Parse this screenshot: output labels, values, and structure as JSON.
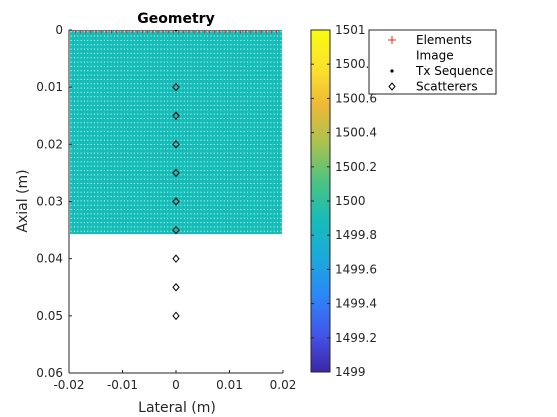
{
  "colors": {
    "field": "#15bdb8",
    "element_marker": "#e8262a",
    "grid_dots": "#e7f6f5",
    "sequence_dot": "#000000",
    "scatterer": "#000000",
    "axis": "#262626"
  },
  "chart_data": {
    "type": "scatter",
    "title": "Geometry",
    "xlabel": "Lateral (m)",
    "ylabel": "Axial (m)",
    "xlim": [
      -0.02,
      0.02
    ],
    "ylim": [
      0,
      0.06
    ],
    "y_reversed": true,
    "x_ticks": [
      -0.02,
      -0.01,
      0,
      0.01,
      0.02
    ],
    "x_tick_labels": [
      "-0.02",
      "-0.01",
      "0",
      "0.01",
      "0.02"
    ],
    "y_ticks": [
      0,
      0.01,
      0.02,
      0.03,
      0.04,
      0.05,
      0.06
    ],
    "y_tick_labels": [
      "0",
      "0.01",
      "0.02",
      "0.03",
      "0.04",
      "0.05",
      "0.06"
    ],
    "field": {
      "value": 1500,
      "x_range": [
        -0.0198,
        0.0198
      ],
      "y_range": [
        -0.0012,
        0.0357
      ]
    },
    "image_grid": {
      "x_range": [
        -0.0196,
        0.0196
      ],
      "y_range": [
        0.0003,
        0.0352
      ],
      "nx": 64,
      "ny": 47
    },
    "series": [
      {
        "name": "Elements",
        "marker": "+",
        "color": "#e8262a",
        "x_start": -0.0188,
        "x_end": 0.0188,
        "count": 40,
        "y": 0
      },
      {
        "name": "Image",
        "marker": "none"
      },
      {
        "name": "Tx Sequence",
        "marker": "dot",
        "color": "#000000",
        "x": [
          0
        ],
        "y": [
          0
        ]
      },
      {
        "name": "Scatterers",
        "marker": "diamond",
        "color": "#000000",
        "x": [
          0,
          0,
          0,
          0,
          0,
          0,
          0,
          0,
          0
        ],
        "y": [
          0.01,
          0.015,
          0.02,
          0.025,
          0.03,
          0.035,
          0.04,
          0.045,
          0.05
        ]
      }
    ],
    "legend": {
      "placement": "outside-top-right",
      "entries": [
        "Elements",
        "Image",
        "Tx Sequence",
        "Scatterers"
      ]
    },
    "colorbar": {
      "limits": [
        1499,
        1501
      ],
      "ticks": [
        1499,
        1499.2,
        1499.4,
        1499.6,
        1499.8,
        1500,
        1500.2,
        1500.4,
        1500.6,
        1500.8,
        1501
      ],
      "tick_labels": [
        "1499",
        "1499.2",
        "1499.4",
        "1499.6",
        "1499.8",
        "1500",
        "1500.2",
        "1500.4",
        "1500.6",
        "1500.8",
        "1501"
      ],
      "colormap": "parula",
      "colormap_stops": [
        "#3e26a8",
        "#4256ea",
        "#2c87fa",
        "#1aa9dc",
        "#16bcb8",
        "#4ac383",
        "#a7c24e",
        "#ecb836",
        "#fce22c",
        "#f9fb0e"
      ]
    }
  }
}
